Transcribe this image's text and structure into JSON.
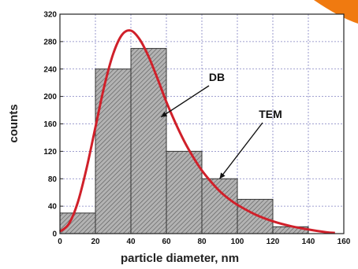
{
  "chart_data": {
    "type": "bar",
    "title": "",
    "xlabel": "particle diameter, nm",
    "ylabel": "counts",
    "xlim": [
      0,
      160
    ],
    "ylim": [
      0,
      320
    ],
    "x_ticks": [
      0,
      20,
      40,
      60,
      80,
      100,
      120,
      140,
      160
    ],
    "y_ticks": [
      0,
      40,
      80,
      120,
      160,
      200,
      240,
      280,
      320
    ],
    "grid": true,
    "bars": [
      {
        "x0": 0,
        "x1": 20,
        "value": 30
      },
      {
        "x0": 20,
        "x1": 40,
        "value": 240
      },
      {
        "x0": 40,
        "x1": 60,
        "value": 270
      },
      {
        "x0": 60,
        "x1": 80,
        "value": 120
      },
      {
        "x0": 80,
        "x1": 100,
        "value": 80
      },
      {
        "x0": 100,
        "x1": 120,
        "value": 50
      },
      {
        "x0": 120,
        "x1": 140,
        "value": 10
      }
    ],
    "curve": {
      "x": [
        0,
        5,
        10,
        15,
        20,
        25,
        30,
        35,
        40,
        45,
        50,
        55,
        60,
        65,
        70,
        75,
        80,
        85,
        90,
        95,
        100,
        110,
        120,
        130,
        140,
        150,
        155
      ],
      "y": [
        3,
        14,
        45,
        95,
        155,
        215,
        262,
        290,
        296,
        283,
        258,
        226,
        192,
        162,
        135,
        112,
        92,
        76,
        62,
        51,
        42,
        28,
        18,
        11,
        6,
        2,
        1
      ]
    },
    "annotations": [
      {
        "text": "DB",
        "target_x": 57,
        "target_y": 170
      },
      {
        "text": "TEM",
        "target_x": 90,
        "target_y": 80
      }
    ],
    "colors": {
      "bar_fill": "#b3b3b3",
      "bar_hatch": "#555555",
      "curve": "#d0202a",
      "grid": "#8080c0",
      "corner_accent": "#f07a10"
    }
  }
}
